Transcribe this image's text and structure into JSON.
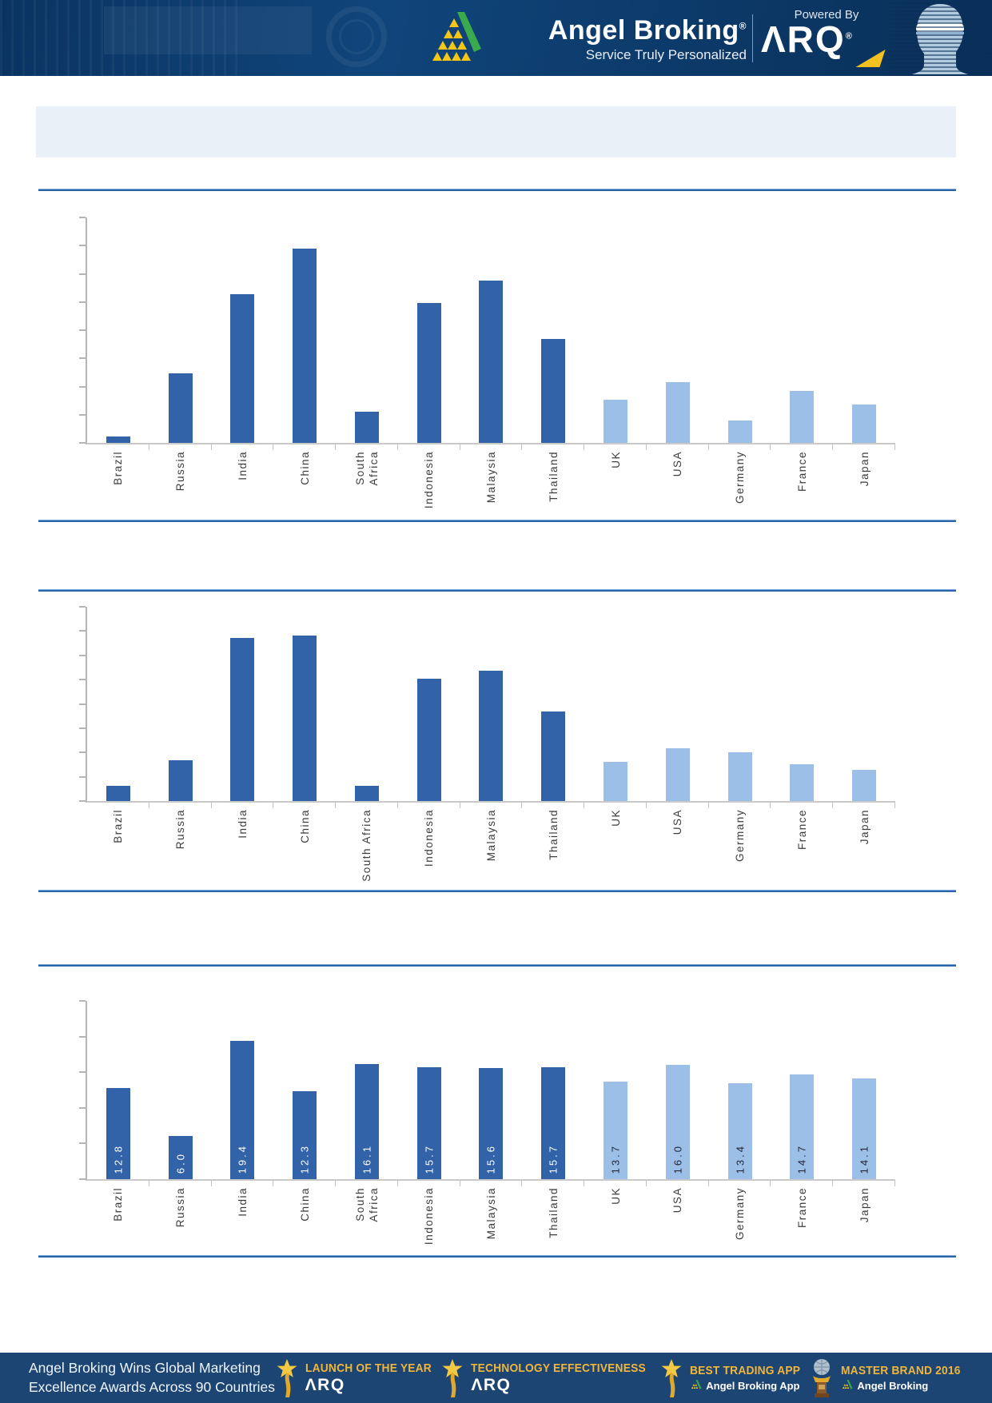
{
  "header": {
    "brand": "Angel Broking",
    "reg_mark": "®",
    "tagline": "Service Truly Personalized",
    "powered_by": "Powered By",
    "arq_wordmark": "ΛRQ"
  },
  "title_bar": {
    "text": ""
  },
  "chart_data": [
    {
      "type": "bar",
      "title": "",
      "xlabel": "",
      "ylabel": "",
      "categories": [
        "Brazil",
        "Russia",
        "India",
        "China",
        "South Africa",
        "Indonesia",
        "Malaysia",
        "Thailand",
        "UK",
        "USA",
        "Germany",
        "France",
        "Japan"
      ],
      "category_label_lines": [
        [
          "Brazil"
        ],
        [
          "Russia"
        ],
        [
          "India"
        ],
        [
          "China"
        ],
        [
          "South",
          "Africa"
        ],
        [
          "Indonesia"
        ],
        [
          "Malaysia"
        ],
        [
          "Thailand"
        ],
        [
          "UK"
        ],
        [
          "USA"
        ],
        [
          "Germany"
        ],
        [
          "France"
        ],
        [
          "Japan"
        ]
      ],
      "values_pct_of_axis": [
        3,
        31,
        66,
        86,
        14,
        62,
        72,
        46,
        19,
        27,
        10,
        23,
        17
      ],
      "value_labels_shown": false,
      "y_axis": {
        "tick_count": 9,
        "labels_shown": false
      },
      "grid": false,
      "legend": false,
      "bar_color_keys": [
        "dark",
        "dark",
        "dark",
        "dark",
        "dark",
        "dark",
        "dark",
        "dark",
        "light",
        "light",
        "light",
        "light",
        "light"
      ]
    },
    {
      "type": "bar",
      "title": "",
      "xlabel": "",
      "ylabel": "",
      "categories": [
        "Brazil",
        "Russia",
        "India",
        "China",
        "South Africa",
        "Indonesia",
        "Malaysia",
        "Thailand",
        "UK",
        "USA",
        "Germany",
        "France",
        "Japan"
      ],
      "category_label_lines": [
        [
          "Brazil"
        ],
        [
          "Russia"
        ],
        [
          "India"
        ],
        [
          "China"
        ],
        [
          "South Africa"
        ],
        [
          "Indonesia"
        ],
        [
          "Malaysia"
        ],
        [
          "Thailand"
        ],
        [
          "UK"
        ],
        [
          "USA"
        ],
        [
          "Germany"
        ],
        [
          "France"
        ],
        [
          "Japan"
        ]
      ],
      "values_pct_of_axis": [
        8,
        21,
        84,
        85,
        8,
        63,
        67,
        46,
        20,
        27,
        25,
        19,
        16
      ],
      "value_labels_shown": false,
      "y_axis": {
        "tick_count": 9,
        "labels_shown": false
      },
      "grid": false,
      "legend": false,
      "bar_color_keys": [
        "dark",
        "dark",
        "dark",
        "dark",
        "dark",
        "dark",
        "dark",
        "dark",
        "light",
        "light",
        "light",
        "light",
        "light"
      ]
    },
    {
      "type": "bar",
      "title": "",
      "xlabel": "",
      "ylabel": "",
      "categories": [
        "Brazil",
        "Russia",
        "India",
        "China",
        "South Africa",
        "Indonesia",
        "Malaysia",
        "Thailand",
        "UK",
        "USA",
        "Germany",
        "France",
        "Japan"
      ],
      "category_label_lines": [
        [
          "Brazil"
        ],
        [
          "Russia"
        ],
        [
          "India"
        ],
        [
          "China"
        ],
        [
          "South",
          "Africa"
        ],
        [
          "Indonesia"
        ],
        [
          "Malaysia"
        ],
        [
          "Thailand"
        ],
        [
          "UK"
        ],
        [
          "USA"
        ],
        [
          "Germany"
        ],
        [
          "France"
        ],
        [
          "Japan"
        ]
      ],
      "values": [
        12.8,
        6.0,
        19.4,
        12.3,
        16.1,
        15.7,
        15.6,
        15.7,
        13.7,
        16.0,
        13.4,
        14.7,
        14.1
      ],
      "value_labels": [
        "12.8",
        "6.0",
        "19.4",
        "12.3",
        "16.1",
        "15.7",
        "15.6",
        "15.7",
        "13.7",
        "16.0",
        "13.4",
        "14.7",
        "14.1"
      ],
      "value_labels_shown": true,
      "ylim": [
        0,
        25
      ],
      "y_axis": {
        "tick_count": 6,
        "labels_shown": false
      },
      "grid": false,
      "legend": false,
      "bar_color_keys": [
        "dark",
        "dark",
        "dark",
        "dark",
        "dark",
        "dark",
        "dark",
        "dark",
        "light",
        "light",
        "light",
        "light",
        "light"
      ]
    }
  ],
  "footer": {
    "headline_line1": "Angel Broking Wins Global Marketing",
    "headline_line2": "Excellence Awards Across 90 Countries",
    "awards": [
      {
        "title": "LAUNCH OF THE YEAR",
        "subtitle": "ΛRQ",
        "icon": "star-trophy-icon",
        "subtitle_style": "arq"
      },
      {
        "title": "TECHNOLOGY EFFECTIVENESS",
        "subtitle": "ΛRQ",
        "icon": "star-trophy-icon",
        "subtitle_style": "arq"
      },
      {
        "title": "BEST TRADING APP",
        "subtitle": "Angel Broking App",
        "icon": "star-trophy-icon",
        "subtitle_style": "brand"
      },
      {
        "title": "MASTER BRAND 2016",
        "subtitle": "Angel Broking",
        "icon": "globe-trophy-icon",
        "subtitle_style": "brand"
      }
    ]
  },
  "colors": {
    "bar_dark": "#3263a8",
    "bar_light": "#9bbfe6",
    "separator_blue": "#2565a8",
    "header_bg": "#0d3c6d",
    "footer_bg": "#1d4573",
    "gold": "#f0b63a",
    "logo_green": "#3aaa4c",
    "logo_yellow": "#f5c518",
    "title_bar_bg": "#e9f0f8",
    "axis_gray": "#b5b5b5",
    "label_text": "#3c3c3c"
  }
}
